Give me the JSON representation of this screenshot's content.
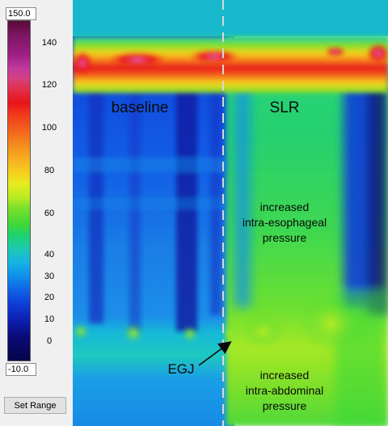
{
  "colorbar": {
    "max_label": "150.0",
    "min_label": "-10.0",
    "ticks": [
      "140",
      "120",
      "100",
      "80",
      "60",
      "40",
      "30",
      "20",
      "10",
      "0"
    ],
    "tick_values": [
      140,
      120,
      100,
      80,
      60,
      40,
      30,
      20,
      10,
      0
    ],
    "set_range_label": "Set Range"
  },
  "chart_data": {
    "type": "heatmap",
    "title": "",
    "xlabel": "",
    "ylabel": "",
    "value_range": [
      -10,
      150
    ],
    "grid": false,
    "legend": "left colorbar",
    "regions": [
      {
        "label": "baseline"
      },
      {
        "label": "SLR"
      }
    ],
    "annotations": [
      {
        "text_lines": [
          "increased",
          "intra-esophageal",
          "pressure"
        ]
      },
      {
        "text_lines": [
          "increased",
          "intra-abdominal",
          "pressure"
        ]
      },
      {
        "text": "EGJ",
        "arrow": true
      }
    ],
    "divider": {
      "style": "dashed",
      "color": "#d8d8d8"
    }
  },
  "colors": {
    "high_pressure_band": "#e8141a",
    "baseline_background": "#1a6ee0",
    "slr_background": "#3ed838"
  }
}
